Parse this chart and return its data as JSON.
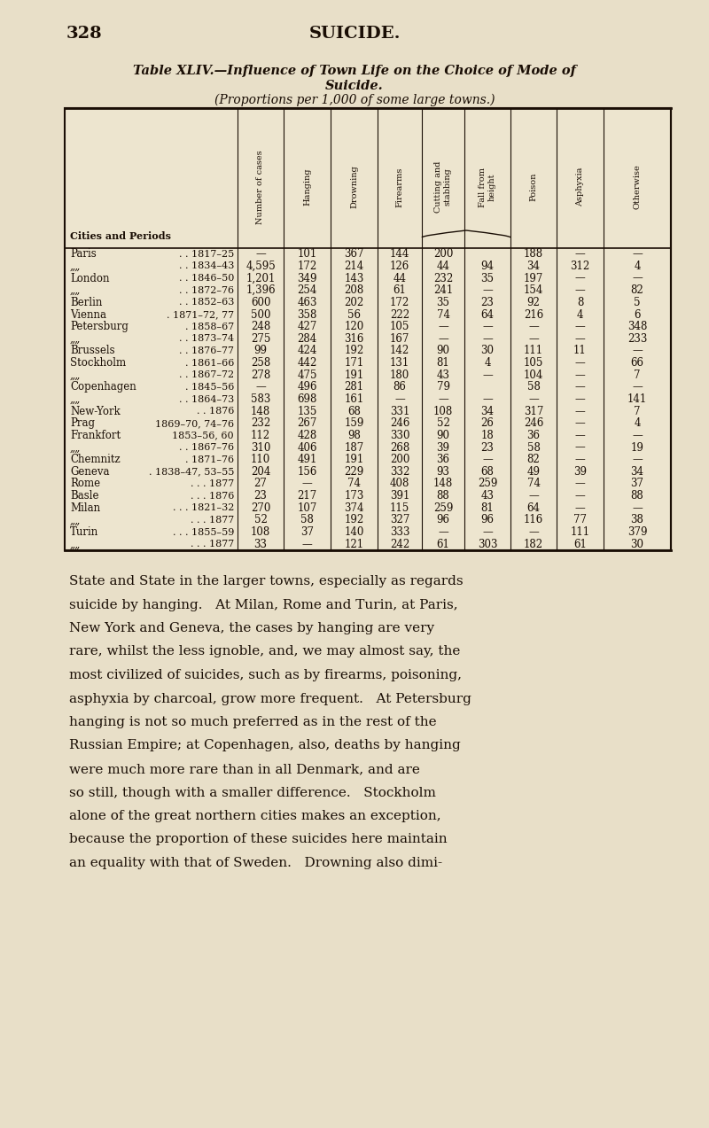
{
  "page_number": "328",
  "page_header": "SUICIDE.",
  "title_line1": "Table XLIV.—Influence of Town Life on the Choice of Mode of",
  "title_line2": "Suicide.",
  "title_line3": "(Proportions per 1,000 of some large towns.)",
  "city_period_header": "Cities and Periods",
  "col_headers_rotated": [
    "Number of cases",
    "Hanging",
    "Drowning",
    "Firearms",
    "Cutting and\nstabbing",
    "Fall from\nheight",
    "Poison",
    "Asphyxia",
    "Otherwise"
  ],
  "rows": [
    [
      "Paris",
      ". . 1817–25",
      "—",
      "101",
      "367",
      "144",
      "200",
      "",
      "188",
      "—",
      "—"
    ],
    [
      "””",
      ". . 1834–43",
      "4,595",
      "172",
      "214",
      "126",
      "44",
      "94",
      "34",
      "312",
      "4"
    ],
    [
      "London",
      ". . 1846–50",
      "1,201",
      "349",
      "143",
      "44",
      "232",
      "35",
      "197",
      "—",
      "—"
    ],
    [
      "””",
      ". . 1872–76",
      "1,396",
      "254",
      "208",
      "61",
      "241",
      "—",
      "154",
      "—",
      "82"
    ],
    [
      "Berlin",
      ". . 1852–63",
      "600",
      "463",
      "202",
      "172",
      "35",
      "23",
      "92",
      "8",
      "5"
    ],
    [
      "Vienna",
      ". 1871–72, 77",
      "500",
      "358",
      "56",
      "222",
      "74",
      "64",
      "216",
      "4",
      "6"
    ],
    [
      "Petersburg",
      ". 1858–67",
      "248",
      "427",
      "120",
      "105",
      "—",
      "—",
      "—",
      "—",
      "348"
    ],
    [
      "””",
      ". . 1873–74",
      "275",
      "284",
      "316",
      "167",
      "—",
      "—",
      "—",
      "—",
      "233"
    ],
    [
      "Brussels",
      ". . 1876–77",
      "99",
      "424",
      "192",
      "142",
      "90",
      "30",
      "111",
      "11",
      "—"
    ],
    [
      "Stockholm",
      ". 1861–66",
      "258",
      "442",
      "171",
      "131",
      "81",
      "4",
      "105",
      "—",
      "66"
    ],
    [
      "””",
      ". . 1867–72",
      "278",
      "475",
      "191",
      "180",
      "43",
      "—",
      "104",
      "—",
      "7"
    ],
    [
      "Copenhagen",
      ". 1845–56",
      "—",
      "496",
      "281",
      "86",
      "79",
      "",
      "58",
      "—",
      "—"
    ],
    [
      "””",
      ". . 1864–73",
      "583",
      "698",
      "161",
      "—",
      "—",
      "—",
      "—",
      "—",
      "141"
    ],
    [
      "New-York",
      ". . 1876",
      "148",
      "135",
      "68",
      "331",
      "108",
      "34",
      "317",
      "—",
      "7"
    ],
    [
      "Prag",
      "1869–70, 74–76",
      "232",
      "267",
      "159",
      "246",
      "52",
      "26",
      "246",
      "—",
      "4"
    ],
    [
      "Frankfort",
      "1853–56, 60",
      "112",
      "428",
      "98",
      "330",
      "90",
      "18",
      "36",
      "—",
      "—"
    ],
    [
      "””",
      ". . 1867–76",
      "310",
      "406",
      "187",
      "268",
      "39",
      "23",
      "58",
      "—",
      "19"
    ],
    [
      "Chemnitz",
      ". 1871–76",
      "110",
      "491",
      "191",
      "200",
      "36",
      "—",
      "82",
      "—",
      "—"
    ],
    [
      "Geneva",
      ". 1838–47, 53–55",
      "204",
      "156",
      "229",
      "332",
      "93",
      "68",
      "49",
      "39",
      "34"
    ],
    [
      "Rome",
      ". . . 1877",
      "27",
      "—",
      "74",
      "408",
      "148",
      "259",
      "74",
      "—",
      "37"
    ],
    [
      "Basle",
      ". . . 1876",
      "23",
      "217",
      "173",
      "391",
      "88",
      "43",
      "—",
      "—",
      "88"
    ],
    [
      "Milan",
      ". . . 1821–32",
      "270",
      "107",
      "374",
      "115",
      "259",
      "81",
      "64",
      "—",
      "—"
    ],
    [
      "””",
      ". . . 1877",
      "52",
      "58",
      "192",
      "327",
      "96",
      "96",
      "116",
      "77",
      "38"
    ],
    [
      "Turin",
      ". . . 1855–59",
      "108",
      "37",
      "140",
      "333",
      "—",
      "—",
      "—",
      "111",
      "379"
    ],
    [
      "””",
      ". . . 1877",
      "33",
      "—",
      "121",
      "242",
      "61",
      "303",
      "182",
      "61",
      "30"
    ]
  ],
  "footer_lines": [
    "State and State in the larger towns, especially as regards",
    "suicide by hanging.   At Milan, Rome and Turin, at Paris,",
    "New York and Geneva, the cases by hanging are very",
    "rare, whilst the less ignoble, and, we may almost say, the",
    "most civilized of suicides, such as by firearms, poisoning,",
    "asphyxia by charcoal, grow more frequent.   At Petersburg",
    "hanging is not so much preferred as in the rest of the",
    "Russian Empire; at Copenhagen, also, deaths by hanging",
    "were much more rare than in all Denmark, and are",
    "so still, though with a smaller difference.   Stockholm",
    "alone of the great northern cities makes an exception,",
    "because the proportion of these suicides here maintain",
    "an equality with that of Sweden.   Drowning also dimi-"
  ],
  "bg_color": "#e8dfc8",
  "table_bg": "#ede5cf",
  "text_color": "#1a0e05",
  "line_color": "#1a0e05"
}
